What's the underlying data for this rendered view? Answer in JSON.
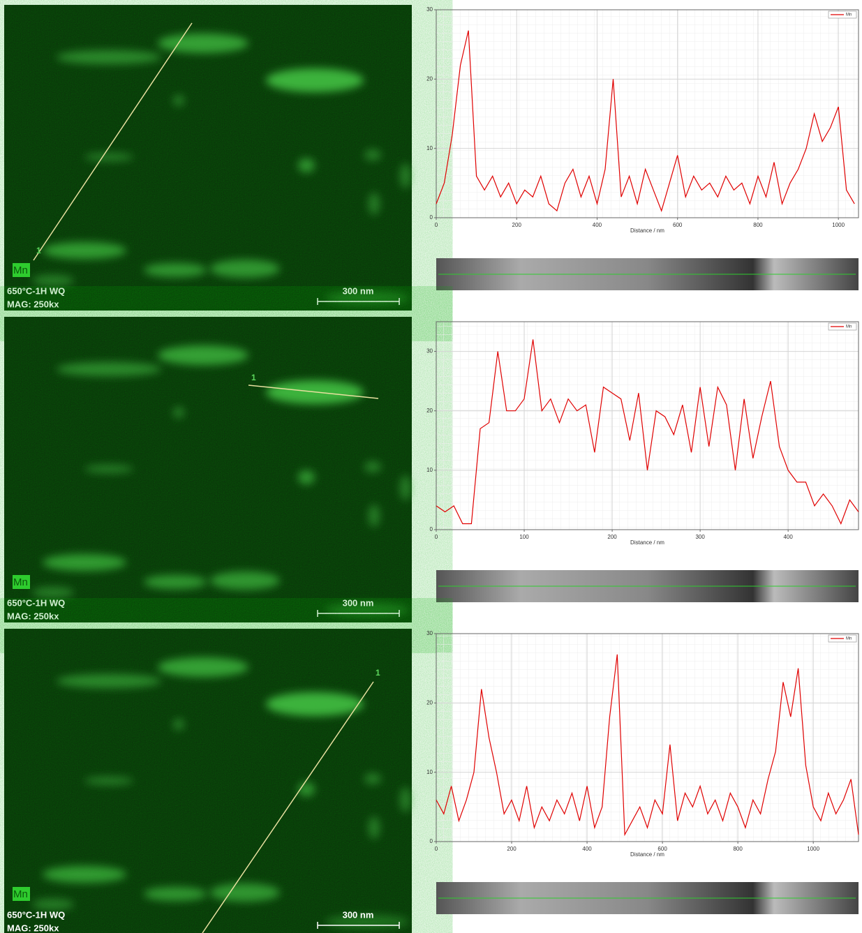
{
  "panels": [
    {
      "element": "Mn",
      "sample": "650°C-1H WQ",
      "magnification": "MAG: 250kx",
      "scale_bar": "300 nm",
      "line_marker": "1"
    },
    {
      "element": "Mn",
      "sample": "650°C-1H WQ",
      "magnification": "MAG: 250kx",
      "scale_bar": "300 nm",
      "line_marker": "1"
    },
    {
      "element": "Mn",
      "sample": "650°C-1H WQ",
      "magnification": "MAG: 250kx",
      "scale_bar": "300 nm",
      "line_marker": "1"
    }
  ],
  "chart_data": [
    {
      "type": "line",
      "x_label": "Distance / nm",
      "legend": "upper right",
      "grid": true,
      "x": [
        0,
        20,
        40,
        60,
        80,
        100,
        120,
        140,
        160,
        180,
        200,
        220,
        240,
        260,
        280,
        300,
        320,
        340,
        360,
        380,
        400,
        420,
        440,
        460,
        480,
        500,
        520,
        540,
        560,
        580,
        600,
        620,
        640,
        660,
        680,
        700,
        720,
        740,
        760,
        780,
        800,
        820,
        840,
        860,
        880,
        900,
        920,
        940,
        960,
        980,
        1000,
        1020,
        1040
      ],
      "series": [
        {
          "name": "Mn",
          "color": "#e00000",
          "values": [
            2,
            5,
            12,
            22,
            27,
            6,
            4,
            6,
            3,
            5,
            2,
            4,
            3,
            6,
            2,
            1,
            5,
            7,
            3,
            6,
            2,
            7,
            20,
            3,
            6,
            2,
            7,
            4,
            1,
            5,
            9,
            3,
            6,
            4,
            5,
            3,
            6,
            4,
            5,
            2,
            6,
            3,
            8,
            2,
            5,
            7,
            10,
            15,
            11,
            13,
            16,
            4,
            2
          ]
        }
      ],
      "xlim": [
        0,
        1050
      ],
      "ylim": [
        0,
        30
      ],
      "xticks": [
        0,
        200,
        400,
        600,
        800,
        1000
      ],
      "yticks": [
        0,
        10,
        20,
        30
      ]
    },
    {
      "type": "line",
      "x_label": "Distance / nm",
      "legend": "upper right",
      "grid": true,
      "x": [
        0,
        10,
        20,
        30,
        40,
        50,
        60,
        70,
        80,
        90,
        100,
        110,
        120,
        130,
        140,
        150,
        160,
        170,
        180,
        190,
        200,
        210,
        220,
        230,
        240,
        250,
        260,
        270,
        280,
        290,
        300,
        310,
        320,
        330,
        340,
        350,
        360,
        370,
        380,
        390,
        400,
        410,
        420,
        430,
        440,
        450,
        460,
        470,
        480
      ],
      "series": [
        {
          "name": "Mn",
          "color": "#e00000",
          "values": [
            4,
            3,
            4,
            1,
            1,
            17,
            18,
            30,
            20,
            20,
            22,
            32,
            20,
            22,
            18,
            22,
            20,
            21,
            13,
            24,
            23,
            22,
            15,
            23,
            10,
            20,
            19,
            16,
            21,
            13,
            24,
            14,
            24,
            21,
            10,
            22,
            12,
            19,
            25,
            14,
            10,
            8,
            8,
            4,
            6,
            4,
            1,
            5,
            3
          ]
        }
      ],
      "xlim": [
        0,
        480
      ],
      "ylim": [
        0,
        35
      ],
      "xticks": [
        0,
        100,
        200,
        300,
        400
      ],
      "yticks": [
        0,
        10,
        20,
        30
      ]
    },
    {
      "type": "line",
      "x_label": "Distance / nm",
      "legend": "upper right",
      "grid": true,
      "x": [
        0,
        20,
        40,
        60,
        80,
        100,
        120,
        140,
        160,
        180,
        200,
        220,
        240,
        260,
        280,
        300,
        320,
        340,
        360,
        380,
        400,
        420,
        440,
        460,
        480,
        500,
        520,
        540,
        560,
        580,
        600,
        620,
        640,
        660,
        680,
        700,
        720,
        740,
        760,
        780,
        800,
        820,
        840,
        860,
        880,
        900,
        920,
        940,
        960,
        980,
        1000,
        1020,
        1040,
        1060,
        1080,
        1100,
        1120
      ],
      "series": [
        {
          "name": "Mn",
          "color": "#e00000",
          "values": [
            6,
            4,
            8,
            3,
            6,
            10,
            22,
            15,
            10,
            4,
            6,
            3,
            8,
            2,
            5,
            3,
            6,
            4,
            7,
            3,
            8,
            2,
            5,
            18,
            27,
            1,
            3,
            5,
            2,
            6,
            4,
            14,
            3,
            7,
            5,
            8,
            4,
            6,
            3,
            7,
            5,
            2,
            6,
            4,
            9,
            13,
            23,
            18,
            25,
            11,
            5,
            3,
            7,
            4,
            6,
            9,
            1
          ]
        }
      ],
      "xlim": [
        0,
        1120
      ],
      "ylim": [
        0,
        30
      ],
      "xticks": [
        0,
        200,
        400,
        600,
        800,
        1000
      ],
      "yticks": [
        0,
        10,
        20,
        30
      ]
    }
  ]
}
